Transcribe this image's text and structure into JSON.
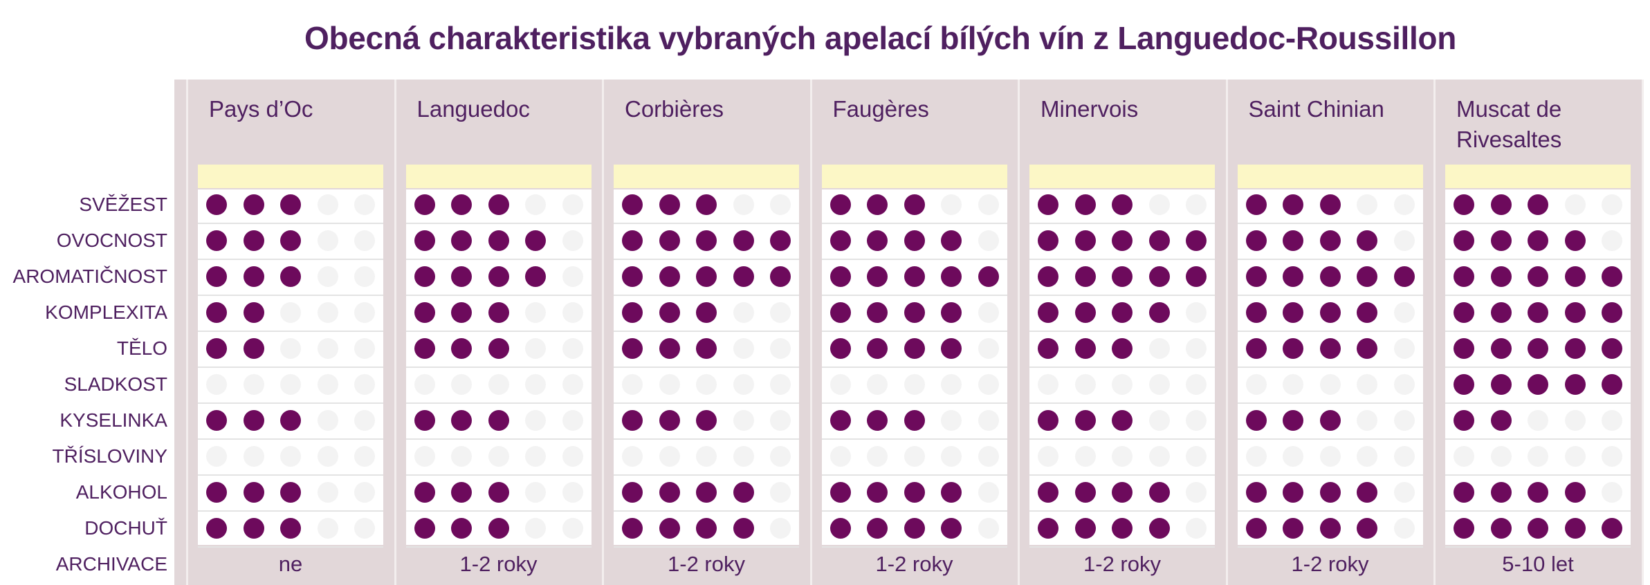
{
  "chart_data": {
    "type": "table",
    "title": "Obecná charakteristika vybraných apelací bílých vín z Languedoc-Roussillon",
    "scale_max": 5,
    "colors": {
      "dot_on": "#6d0a5c",
      "dot_off": "#f3f3f3",
      "panel": "#e2d7d9",
      "strip": "#fcf7c6",
      "title": "#4f2060"
    },
    "attributes": [
      "SVĚŽEST",
      "OVOCNOST",
      "AROMATIČNOST",
      "KOMPLEXITA",
      "TĚLO",
      "SLADKOST",
      "KYSELINKA",
      "TŘÍSLOVINY",
      "ALKOHOL",
      "DOCHUŤ"
    ],
    "archive_label": "ARCHIVACE",
    "appellations": [
      {
        "name": "Pays d’Oc",
        "ratings": [
          3,
          3,
          3,
          2,
          2,
          0,
          3,
          0,
          3,
          3
        ],
        "archive": "ne"
      },
      {
        "name": "Languedoc",
        "ratings": [
          3,
          4,
          4,
          3,
          3,
          0,
          3,
          0,
          3,
          3
        ],
        "archive": "1-2 roky"
      },
      {
        "name": "Corbières",
        "ratings": [
          3,
          5,
          5,
          3,
          3,
          0,
          3,
          0,
          4,
          4
        ],
        "archive": "1-2 roky"
      },
      {
        "name": "Faugères",
        "ratings": [
          3,
          4,
          5,
          4,
          4,
          0,
          3,
          0,
          4,
          4
        ],
        "archive": "1-2 roky"
      },
      {
        "name": "Minervois",
        "ratings": [
          3,
          5,
          5,
          4,
          3,
          0,
          3,
          0,
          4,
          4
        ],
        "archive": "1-2 roky"
      },
      {
        "name": "Saint Chinian",
        "ratings": [
          3,
          4,
          5,
          4,
          4,
          0,
          3,
          0,
          4,
          4
        ],
        "archive": "1-2 roky"
      },
      {
        "name": "Muscat de Rivesaltes",
        "ratings": [
          3,
          4,
          5,
          5,
          5,
          5,
          2,
          0,
          4,
          5
        ],
        "archive": "5-10 let"
      }
    ]
  }
}
